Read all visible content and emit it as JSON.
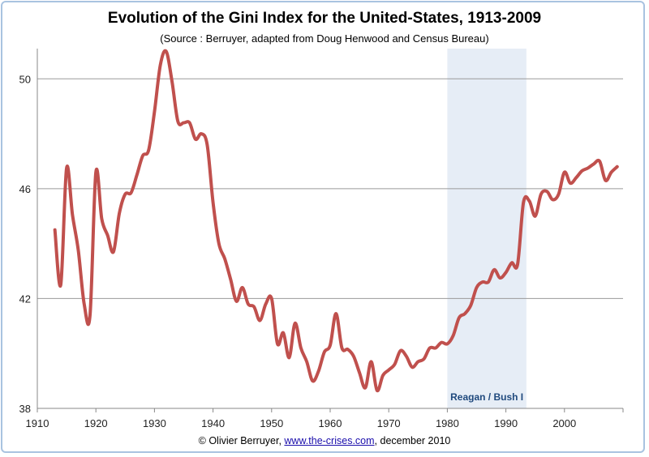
{
  "chart_data": {
    "type": "line",
    "title": "Evolution of the Gini Index for the United-States, 1913-2009",
    "subtitle": "(Source : Berruyer, adapted from Doug Henwood and Census Bureau)",
    "xlabel": "",
    "ylabel": "",
    "xlim": [
      1910,
      2010
    ],
    "ylim": [
      38,
      51.1
    ],
    "x_ticks": [
      1910,
      1920,
      1930,
      1940,
      1950,
      1960,
      1970,
      1980,
      1990,
      2000
    ],
    "y_ticks": [
      38,
      42,
      46,
      50
    ],
    "grid": "horizontal",
    "line_color": "#c0504d",
    "x": [
      1913,
      1914,
      1915,
      1916,
      1917,
      1918,
      1919,
      1920,
      1921,
      1922,
      1923,
      1924,
      1925,
      1926,
      1927,
      1928,
      1929,
      1930,
      1931,
      1932,
      1933,
      1934,
      1935,
      1936,
      1937,
      1938,
      1939,
      1940,
      1941,
      1942,
      1943,
      1944,
      1945,
      1946,
      1947,
      1948,
      1949,
      1950,
      1951,
      1952,
      1953,
      1954,
      1955,
      1956,
      1957,
      1958,
      1959,
      1960,
      1961,
      1962,
      1963,
      1964,
      1965,
      1966,
      1967,
      1968,
      1969,
      1970,
      1971,
      1972,
      1973,
      1974,
      1975,
      1976,
      1977,
      1978,
      1979,
      1980,
      1981,
      1982,
      1983,
      1984,
      1985,
      1986,
      1987,
      1988,
      1989,
      1990,
      1991,
      1992,
      1993,
      1994,
      1995,
      1996,
      1997,
      1998,
      1999,
      2000,
      2001,
      2002,
      2003,
      2004,
      2005,
      2006,
      2007,
      2008,
      2009
    ],
    "y": [
      44.5,
      42.5,
      46.75,
      45.05,
      43.75,
      41.8,
      41.4,
      46.6,
      44.9,
      44.3,
      43.7,
      45.1,
      45.8,
      45.85,
      46.5,
      47.2,
      47.4,
      48.8,
      50.5,
      51.0,
      49.9,
      48.45,
      48.4,
      48.4,
      47.8,
      48.0,
      47.6,
      45.5,
      44.0,
      43.45,
      42.7,
      41.9,
      42.4,
      41.8,
      41.7,
      41.2,
      41.8,
      42.0,
      40.35,
      40.75,
      39.85,
      41.1,
      40.2,
      39.7,
      39.0,
      39.35,
      40.05,
      40.3,
      41.45,
      40.2,
      40.15,
      39.9,
      39.3,
      38.75,
      39.7,
      38.65,
      39.2,
      39.4,
      39.6,
      40.1,
      39.9,
      39.5,
      39.7,
      39.8,
      40.2,
      40.2,
      40.4,
      40.35,
      40.65,
      41.3,
      41.45,
      41.75,
      42.4,
      42.6,
      42.6,
      43.05,
      42.75,
      42.95,
      43.3,
      43.25,
      45.5,
      45.55,
      45.0,
      45.8,
      45.9,
      45.6,
      45.8,
      46.6,
      46.2,
      46.4,
      46.65,
      46.75,
      46.9,
      47.0,
      46.3,
      46.6,
      46.8
    ],
    "annotations": [
      {
        "label": "Reagan / Bush I",
        "x_start": 1980,
        "x_end": 1993.5,
        "color": "#e6edf6",
        "text_color": "#1f497d"
      }
    ]
  },
  "credit": {
    "prefix": "© Olivier Berruyer, ",
    "link": "www.the-crises.com",
    "suffix": ", december 2010"
  }
}
